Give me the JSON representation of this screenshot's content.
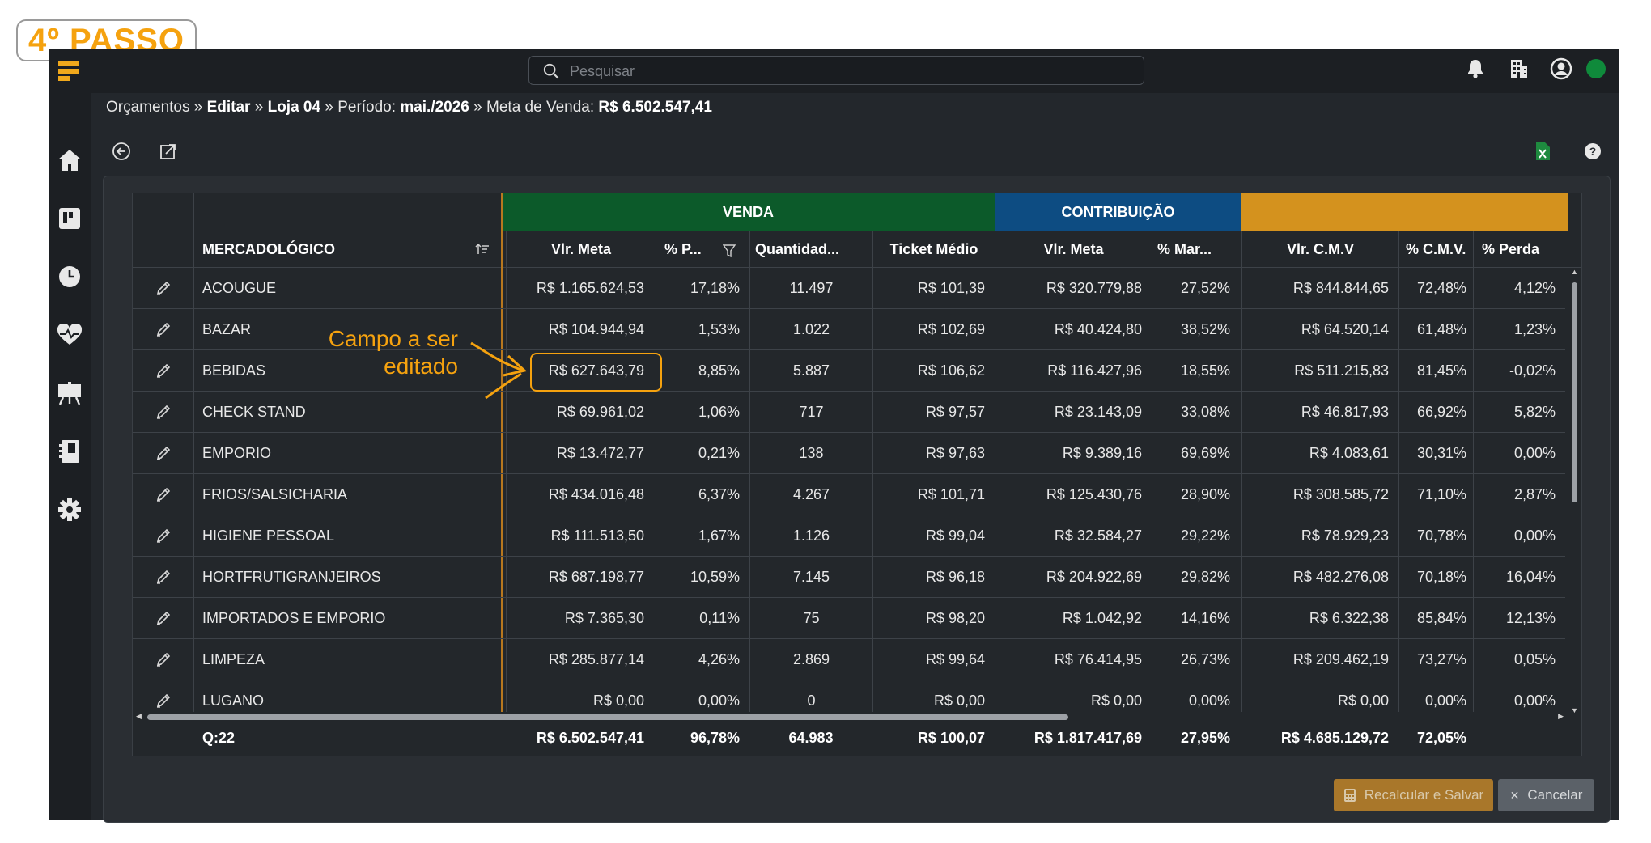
{
  "step_badge": "4º PASSO",
  "search": {
    "placeholder": "Pesquisar"
  },
  "breadcrumb": {
    "p1": "Orçamentos",
    "sep": " » ",
    "p2": "Editar",
    "p3": "Loja 04",
    "periodo_label": "Período: ",
    "periodo_value": "mai./2026",
    "meta_label": "Meta de Venda: ",
    "meta_value": "R$ 6.502.547,41"
  },
  "annotation": {
    "line1": "Campo a ser",
    "line2": "editado",
    "color": "#f5a20f"
  },
  "table": {
    "groups": {
      "venda": "VENDA",
      "contribuicao": "CONTRIBUIÇÃO",
      "third": ""
    },
    "group_colors": {
      "venda": "#0c5a2a",
      "contribuicao": "#0d4c82",
      "third": "#d4921e"
    },
    "mercadologico_header": "MERCADOLÓGICO",
    "headers": [
      "Vlr. Meta",
      "% P...",
      "Quantidad...",
      "Ticket Médio",
      "Vlr. Meta",
      "% Mar...",
      "Vlr. C.M.V",
      "% C.M.V.",
      "% Perda"
    ],
    "rows": [
      {
        "name": "ACOUGUE",
        "v": [
          "R$ 1.165.624,53",
          "17,18%",
          "11.497",
          "R$ 101,39",
          "R$ 320.779,88",
          "27,52%",
          "R$ 844.844,65",
          "72,48%",
          "4,12%"
        ]
      },
      {
        "name": "BAZAR",
        "v": [
          "R$ 104.944,94",
          "1,53%",
          "1.022",
          "R$ 102,69",
          "R$ 40.424,80",
          "38,52%",
          "R$ 64.520,14",
          "61,48%",
          "1,23%"
        ]
      },
      {
        "name": "BEBIDAS",
        "v": [
          "R$ 627.643,79",
          "8,85%",
          "5.887",
          "R$ 106,62",
          "R$ 116.427,96",
          "18,55%",
          "R$ 511.215,83",
          "81,45%",
          "-0,02%"
        ]
      },
      {
        "name": "CHECK STAND",
        "v": [
          "R$ 69.961,02",
          "1,06%",
          "717",
          "R$ 97,57",
          "R$ 23.143,09",
          "33,08%",
          "R$ 46.817,93",
          "66,92%",
          "5,82%"
        ]
      },
      {
        "name": "EMPORIO",
        "v": [
          "R$ 13.472,77",
          "0,21%",
          "138",
          "R$ 97,63",
          "R$ 9.389,16",
          "69,69%",
          "R$ 4.083,61",
          "30,31%",
          "0,00%"
        ]
      },
      {
        "name": "FRIOS/SALSICHARIA",
        "v": [
          "R$ 434.016,48",
          "6,37%",
          "4.267",
          "R$ 101,71",
          "R$ 125.430,76",
          "28,90%",
          "R$ 308.585,72",
          "71,10%",
          "2,87%"
        ]
      },
      {
        "name": "HIGIENE PESSOAL",
        "v": [
          "R$ 111.513,50",
          "1,67%",
          "1.126",
          "R$ 99,04",
          "R$ 32.584,27",
          "29,22%",
          "R$ 78.929,23",
          "70,78%",
          "0,00%"
        ]
      },
      {
        "name": "HORTFRUTIGRANJEIROS",
        "v": [
          "R$ 687.198,77",
          "10,59%",
          "7.145",
          "R$ 96,18",
          "R$ 204.922,69",
          "29,82%",
          "R$ 482.276,08",
          "70,18%",
          "16,04%"
        ]
      },
      {
        "name": "IMPORTADOS E EMPORIO",
        "v": [
          "R$ 7.365,30",
          "0,11%",
          "75",
          "R$ 98,20",
          "R$ 1.042,92",
          "14,16%",
          "R$ 6.322,38",
          "85,84%",
          "12,13%"
        ]
      },
      {
        "name": "LIMPEZA",
        "v": [
          "R$ 285.877,14",
          "4,26%",
          "2.869",
          "R$ 99,64",
          "R$ 76.414,95",
          "26,73%",
          "R$ 209.462,19",
          "73,27%",
          "0,05%"
        ]
      },
      {
        "name": "LUGANO",
        "v": [
          "R$ 0,00",
          "0,00%",
          "0",
          "R$ 0,00",
          "R$ 0,00",
          "0,00%",
          "R$ 0,00",
          "0,00%",
          "0,00%"
        ]
      }
    ],
    "footer": {
      "count": "Q:22",
      "v": [
        "R$ 6.502.547,41",
        "96,78%",
        "64.983",
        "R$ 100,07",
        "R$ 1.817.417,69",
        "27,95%",
        "R$ 4.685.129,72",
        "72,05%",
        ""
      ]
    }
  },
  "buttons": {
    "recalc": "Recalcular e Salvar",
    "cancel": "Cancelar"
  },
  "colors": {
    "accent": "#f5a20f",
    "recalc_bg": "#a9772a",
    "cancel_bg": "#5b6168",
    "status": "#0f8a3b"
  }
}
